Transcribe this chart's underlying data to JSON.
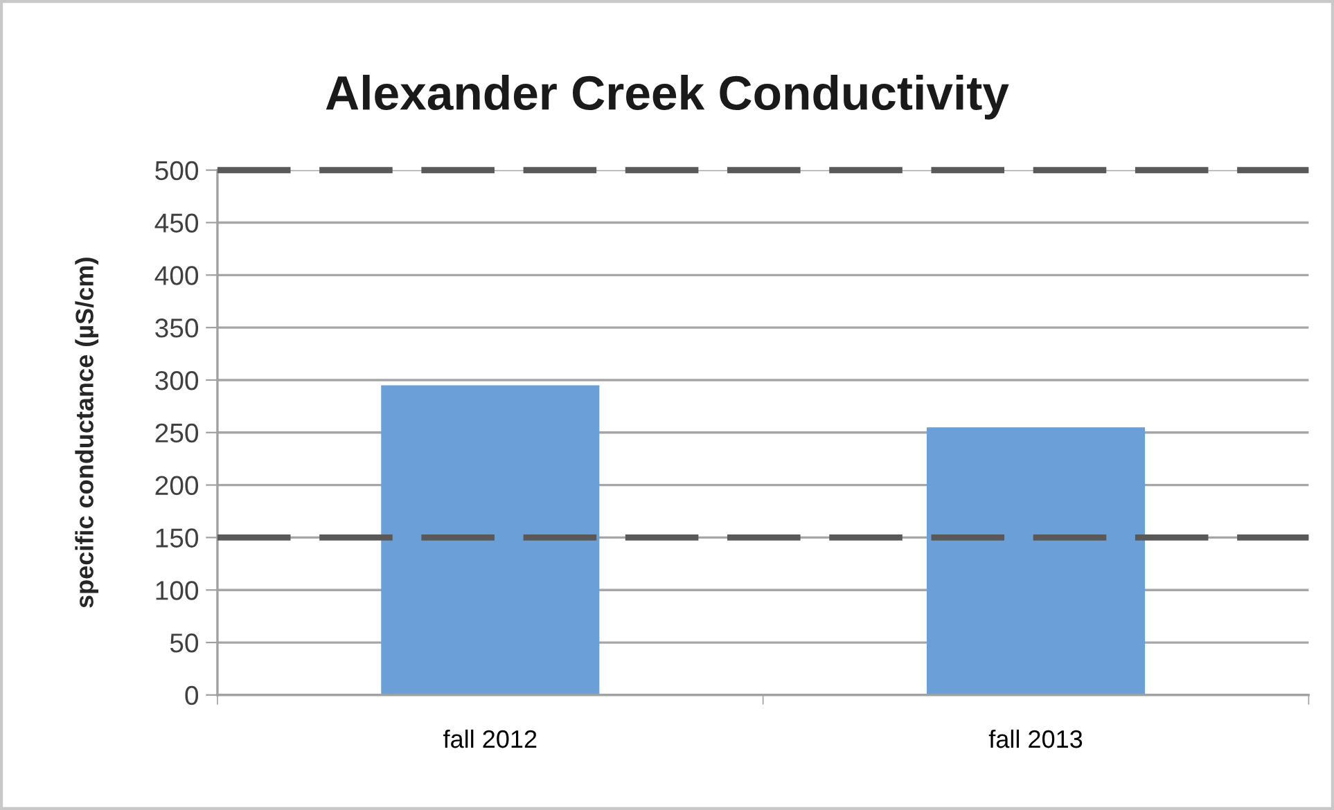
{
  "chart_data": {
    "type": "bar",
    "title": "Alexander Creek Conductivity",
    "ylabel": "specific conductance (µS/cm)",
    "categories": [
      "fall 2012",
      "fall 2013"
    ],
    "values": [
      295,
      255
    ],
    "color": "#6a9fd8",
    "ylim": [
      0,
      500
    ],
    "yticks": [
      0,
      50,
      100,
      150,
      200,
      250,
      300,
      350,
      400,
      450,
      500
    ],
    "grid": "y",
    "legend": false,
    "ref_lines": [
      {
        "axis": "y",
        "value": 150,
        "color": "#595959",
        "line_style": "dashed"
      },
      {
        "axis": "y",
        "value": 500,
        "color": "#595959",
        "line_style": "dashed"
      }
    ]
  }
}
